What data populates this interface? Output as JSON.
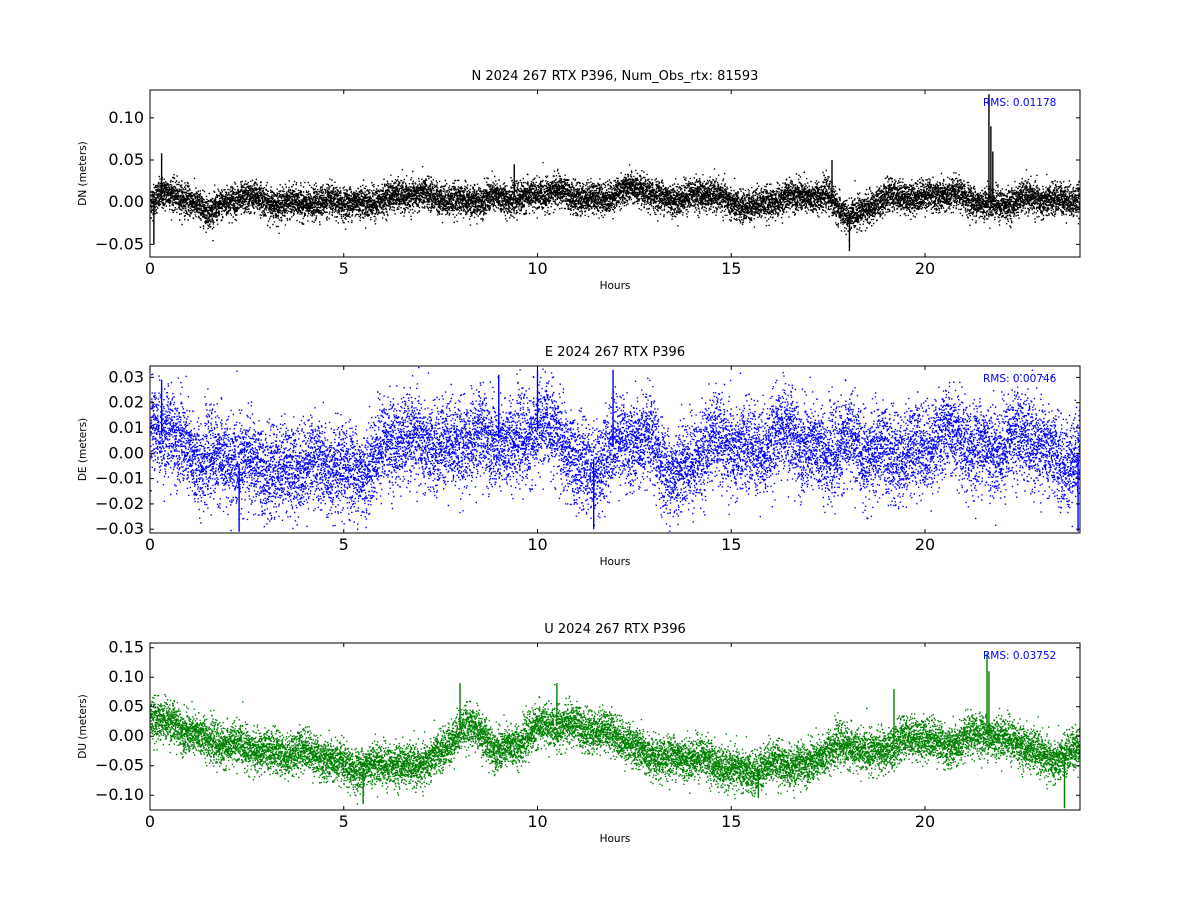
{
  "chart_data": [
    {
      "type": "scatter",
      "title": "N 2024 267 RTX  P396, Num_Obs_rtx: 81593",
      "xlabel": "Hours",
      "ylabel": "DN (meters)",
      "xlim": [
        0,
        24
      ],
      "ylim": [
        -0.065,
        0.133
      ],
      "xticks": [
        "0",
        "5",
        "10",
        "15",
        "20"
      ],
      "yticks": [
        "0.10",
        "0.05",
        "0.00",
        "−0.05"
      ],
      "color": "#000000",
      "annotation": "RMS:  0.01178",
      "annotation_color": "#0000ff",
      "grid": false,
      "legend": "none",
      "noise": 0.009,
      "x": [
        0,
        0.5,
        1,
        1.5,
        2,
        2.5,
        3,
        3.5,
        4,
        4.5,
        5,
        5.5,
        6,
        6.5,
        7,
        7.5,
        8,
        8.5,
        9,
        9.5,
        10,
        10.5,
        11,
        11.5,
        12,
        12.5,
        13,
        13.5,
        14,
        14.5,
        15,
        15.5,
        16,
        16.5,
        17,
        17.5,
        18,
        18.5,
        19,
        19.5,
        20,
        20.5,
        21,
        21.5,
        22,
        22.5,
        23,
        23.5,
        24
      ],
      "y": [
        0.0,
        0.01,
        0.0,
        -0.005,
        0.0,
        0.005,
        0.0,
        0.003,
        0.0,
        -0.003,
        0.0,
        0.003,
        0.005,
        0.005,
        0.008,
        0.01,
        0.003,
        0.0,
        0.005,
        0.008,
        0.012,
        0.01,
        0.005,
        0.008,
        0.012,
        0.015,
        0.005,
        0.008,
        0.01,
        0.008,
        -0.005,
        0.0,
        0.003,
        0.005,
        0.005,
        0.01,
        -0.015,
        -0.01,
        0.005,
        0.01,
        0.01,
        0.008,
        0.003,
        0.002,
        0.0,
        0.003,
        0.0,
        0.005,
        0.008
      ],
      "spikes": [
        [
          21.65,
          0.128
        ],
        [
          21.7,
          0.09
        ],
        [
          21.75,
          0.06
        ],
        [
          18.05,
          -0.058
        ],
        [
          0.3,
          0.058
        ],
        [
          0.1,
          -0.05
        ],
        [
          17.6,
          0.05
        ],
        [
          9.4,
          0.045
        ]
      ]
    },
    {
      "type": "scatter",
      "title": "E 2024 267 RTX  P396",
      "xlabel": "Hours",
      "ylabel": "DE (meters)",
      "xlim": [
        0,
        24
      ],
      "ylim": [
        -0.0315,
        0.0345
      ],
      "xticks": [
        "0",
        "5",
        "10",
        "15",
        "20"
      ],
      "yticks": [
        "0.03",
        "0.02",
        "0.01",
        "0.00",
        "−0.01",
        "−0.02",
        "−0.03"
      ],
      "color": "#0000ff",
      "annotation": "RMS:  0.00746",
      "annotation_color": "#0000ff",
      "grid": false,
      "legend": "none",
      "noise": 0.0085,
      "x": [
        0,
        0.5,
        1,
        1.5,
        2,
        2.5,
        3,
        3.5,
        4,
        4.5,
        5,
        5.5,
        6,
        6.5,
        7,
        7.5,
        8,
        8.5,
        9,
        9.5,
        10,
        10.5,
        11,
        11.5,
        12,
        12.5,
        13,
        13.5,
        14,
        14.5,
        15,
        15.5,
        16,
        16.5,
        17,
        17.5,
        18,
        18.5,
        19,
        19.5,
        20,
        20.5,
        21,
        21.5,
        22,
        22.5,
        23,
        23.5,
        24
      ],
      "y": [
        0.006,
        0.008,
        0.002,
        0.0,
        -0.005,
        -0.006,
        -0.004,
        -0.004,
        -0.006,
        -0.008,
        -0.005,
        -0.004,
        0.0,
        0.004,
        0.006,
        0.006,
        0.002,
        0.004,
        0.006,
        0.007,
        0.009,
        0.006,
        -0.004,
        -0.002,
        0.003,
        0.002,
        0.004,
        -0.006,
        -0.004,
        0.002,
        0.004,
        0.004,
        0.004,
        0.006,
        0.002,
        0.004,
        0.004,
        -0.003,
        0.0,
        0.004,
        0.002,
        0.005,
        0.004,
        0.005,
        0.003,
        0.004,
        0.002,
        0.0,
        0.0
      ],
      "spikes": [
        [
          10.0,
          0.033
        ],
        [
          11.95,
          0.033
        ],
        [
          9.0,
          0.031
        ],
        [
          2.3,
          -0.031
        ],
        [
          11.45,
          -0.03
        ],
        [
          23.95,
          -0.031
        ],
        [
          0.3,
          0.029
        ]
      ]
    },
    {
      "type": "scatter",
      "title": "U 2024 267 RTX  P396",
      "xlabel": "Hours",
      "ylabel": "DU (meters)",
      "xlim": [
        0,
        24
      ],
      "ylim": [
        -0.125,
        0.158
      ],
      "xticks": [
        "0",
        "5",
        "10",
        "15",
        "20"
      ],
      "yticks": [
        "0.15",
        "0.10",
        "0.05",
        "0.00",
        "−0.05",
        "−0.10"
      ],
      "color": "#008000",
      "annotation": "RMS:  0.03752",
      "annotation_color": "#0000ff",
      "grid": false,
      "legend": "none",
      "noise": 0.017,
      "x": [
        0,
        0.5,
        1,
        1.5,
        2,
        2.5,
        3,
        3.5,
        4,
        4.5,
        5,
        5.5,
        6,
        6.5,
        7,
        7.5,
        8,
        8.5,
        9,
        9.5,
        10,
        10.5,
        11,
        11.5,
        12,
        12.5,
        13,
        13.5,
        14,
        14.5,
        15,
        15.5,
        16,
        16.5,
        17,
        17.5,
        18,
        18.5,
        19,
        19.5,
        20,
        20.5,
        21,
        21.5,
        22,
        22.5,
        23,
        23.5,
        24
      ],
      "y": [
        0.03,
        0.025,
        0.015,
        -0.01,
        -0.02,
        -0.015,
        -0.02,
        -0.03,
        -0.03,
        -0.035,
        -0.045,
        -0.055,
        -0.05,
        -0.05,
        -0.04,
        -0.03,
        0.01,
        0.01,
        -0.02,
        -0.01,
        0.01,
        0.02,
        0.025,
        0.01,
        0.0,
        -0.02,
        -0.03,
        -0.035,
        -0.04,
        -0.045,
        -0.05,
        -0.06,
        -0.05,
        -0.05,
        -0.04,
        -0.02,
        -0.02,
        -0.03,
        -0.015,
        0.0,
        -0.005,
        -0.02,
        0.0,
        0.01,
        -0.01,
        -0.015,
        -0.03,
        -0.035,
        -0.02
      ],
      "spikes": [
        [
          21.6,
          0.14
        ],
        [
          21.65,
          0.11
        ],
        [
          8.0,
          0.09
        ],
        [
          10.5,
          0.09
        ],
        [
          19.2,
          0.08
        ],
        [
          5.5,
          -0.115
        ],
        [
          23.6,
          -0.122
        ],
        [
          15.7,
          -0.105
        ]
      ]
    }
  ]
}
